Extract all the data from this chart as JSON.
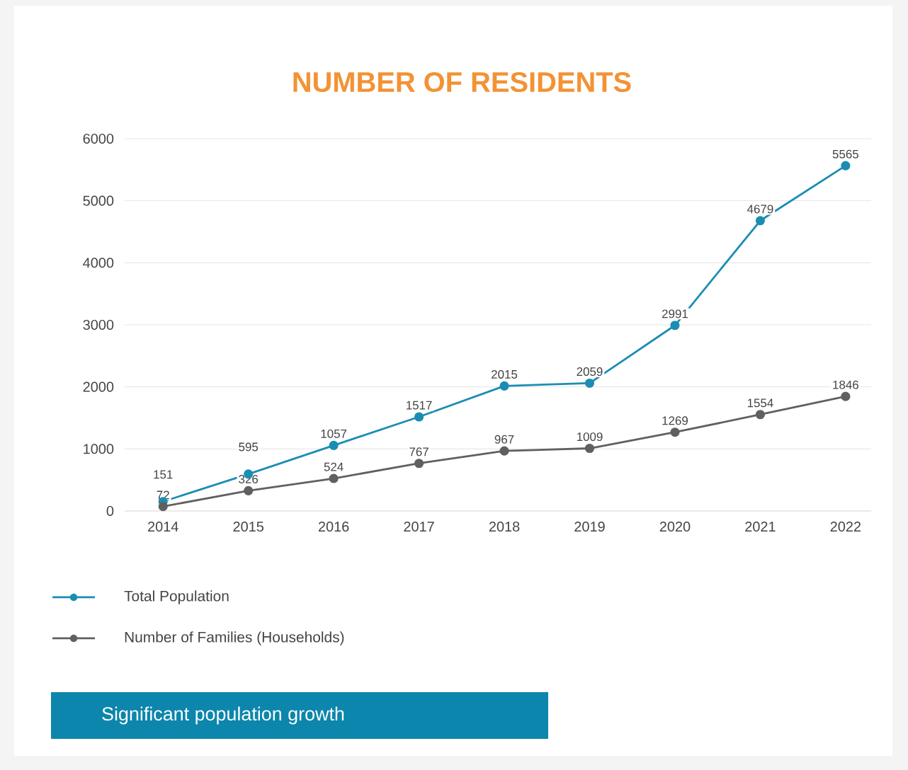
{
  "chart_data": {
    "type": "line",
    "title": "NUMBER OF RESIDENTS",
    "categories": [
      "2014",
      "2015",
      "2016",
      "2017",
      "2018",
      "2019",
      "2020",
      "2021",
      "2022"
    ],
    "series": [
      {
        "name": "Total Population",
        "color": "#1b8db3",
        "values": [
          151,
          595,
          1057,
          1517,
          2015,
          2059,
          2991,
          4679,
          5565
        ]
      },
      {
        "name": "Number of Families (Households)",
        "color": "#5f6060",
        "values": [
          72,
          326,
          524,
          767,
          967,
          1009,
          1269,
          1554,
          1846
        ]
      }
    ],
    "ylim": [
      0,
      6000
    ],
    "yticks": [
      0,
      1000,
      2000,
      3000,
      4000,
      5000,
      6000
    ],
    "grid": "y",
    "marker": "circle",
    "line_style": "solid",
    "legend": "bottom",
    "data_labels": true,
    "annotations": [
      "Significant population growth"
    ]
  }
}
